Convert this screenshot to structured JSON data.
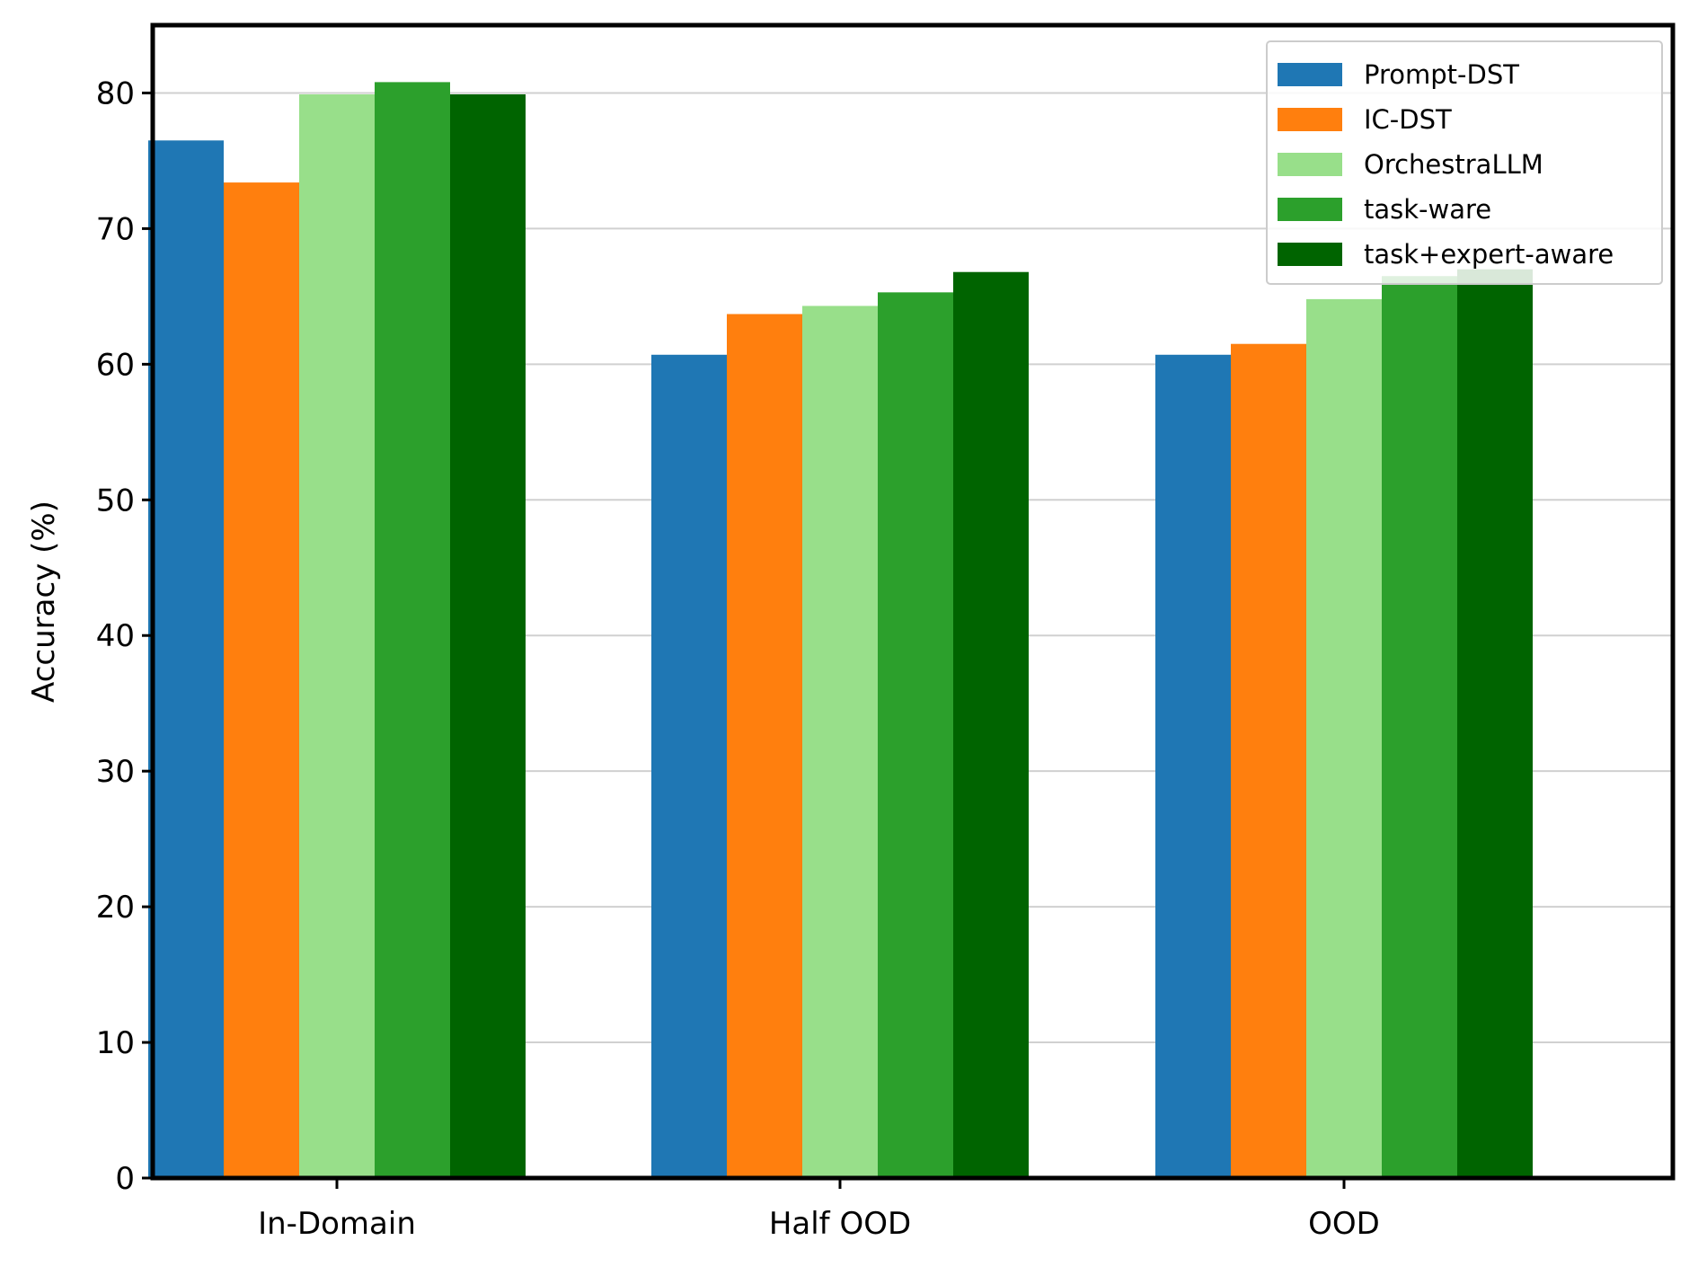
{
  "chart_data": {
    "type": "bar",
    "title": "",
    "xlabel": "",
    "ylabel": "Accuracy (%)",
    "ylim": [
      0,
      85
    ],
    "yticks": [
      0,
      10,
      20,
      30,
      40,
      50,
      60,
      70,
      80
    ],
    "grid": true,
    "legend_position": "top-right",
    "categories": [
      "In-Domain",
      "Half OOD",
      "OOD"
    ],
    "series": [
      {
        "name": "Prompt-DST",
        "color": "#1f77b4",
        "values": [
          76.5,
          60.7,
          60.7
        ]
      },
      {
        "name": "IC-DST",
        "color": "#ff7f0e",
        "values": [
          73.4,
          63.7,
          61.5
        ]
      },
      {
        "name": "OrchestraLLM",
        "color": "#98df8a",
        "values": [
          79.9,
          64.3,
          64.8
        ]
      },
      {
        "name": "task-ware",
        "color": "#2ca02c",
        "values": [
          80.8,
          65.3,
          66.5
        ]
      },
      {
        "name": "task+expert-aware",
        "color": "#006400",
        "values": [
          79.9,
          66.8,
          67.0
        ]
      }
    ]
  }
}
